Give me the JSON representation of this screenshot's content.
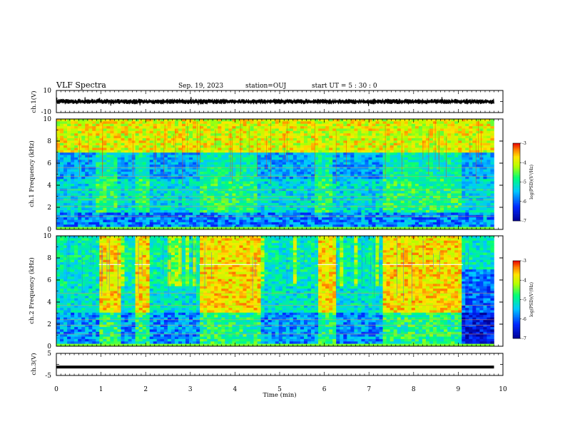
{
  "header": {
    "title": "VLF Spectra",
    "date": "Sep. 19, 2023",
    "station": "station=OUJ",
    "start": "start  UT =  5 : 30 : 0"
  },
  "chart_data": {
    "type": "heatmap",
    "xlabel": "Time (min)",
    "xlim": [
      0,
      10
    ],
    "xticks": [
      "0",
      "1",
      "2",
      "3",
      "4",
      "5",
      "6",
      "7",
      "8",
      "9",
      "10"
    ],
    "data_end_min": 9.8,
    "panels": [
      {
        "name": "ch1-waveform",
        "kind": "waveform",
        "ylabel": "ch.1(V)",
        "ylim": [
          -10,
          10
        ],
        "yticks": [
          "10",
          "-10"
        ],
        "amplitude_band": [
          -2.5,
          2.5
        ]
      },
      {
        "name": "ch1-spectrogram",
        "kind": "spectrogram",
        "ylabel": "ch.1 Frequency (kHz)",
        "ylim": [
          0,
          10
        ],
        "yticks": [
          "0",
          "2",
          "4",
          "6",
          "8",
          "10"
        ],
        "colorbar": {
          "label": "log(PSD)(V²/Hz)",
          "range": [
            -7,
            -3
          ],
          "ticks": [
            "-3",
            "-4",
            "-5",
            "-6",
            "-7"
          ]
        },
        "high_activity_intervals_min": [
          [
            0.9,
            1.4
          ],
          [
            1.75,
            2.05
          ],
          [
            3.2,
            4.5
          ],
          [
            5.8,
            6.2
          ],
          [
            7.3,
            9.1
          ]
        ],
        "cutoff_khz": 7.0
      },
      {
        "name": "ch2-spectrogram",
        "kind": "spectrogram",
        "ylabel": "ch.2 Frequency (kHz)",
        "ylim": [
          0,
          10
        ],
        "yticks": [
          "0",
          "2",
          "4",
          "6",
          "8",
          "10"
        ],
        "colorbar": {
          "label": "log(PSD)(V²/Hz)",
          "range": [
            -7,
            -3
          ],
          "ticks": [
            "-3",
            "-4",
            "-5",
            "-6",
            "-7"
          ]
        },
        "high_activity_intervals_min": [
          [
            0.95,
            1.45
          ],
          [
            1.75,
            2.1
          ],
          [
            3.2,
            4.55
          ],
          [
            5.85,
            6.3
          ],
          [
            7.3,
            9.1
          ]
        ],
        "line_khz": 7.4
      },
      {
        "name": "ch3-waveform",
        "kind": "waveform",
        "ylabel": "ch.3(V)",
        "ylim": [
          -5,
          5
        ],
        "yticks": [
          "5",
          "-5"
        ],
        "constant_value": -1.2
      }
    ],
    "colors": {
      "low": "#0000c8",
      "mid": "#00ff80",
      "high": "#ff0000"
    }
  }
}
